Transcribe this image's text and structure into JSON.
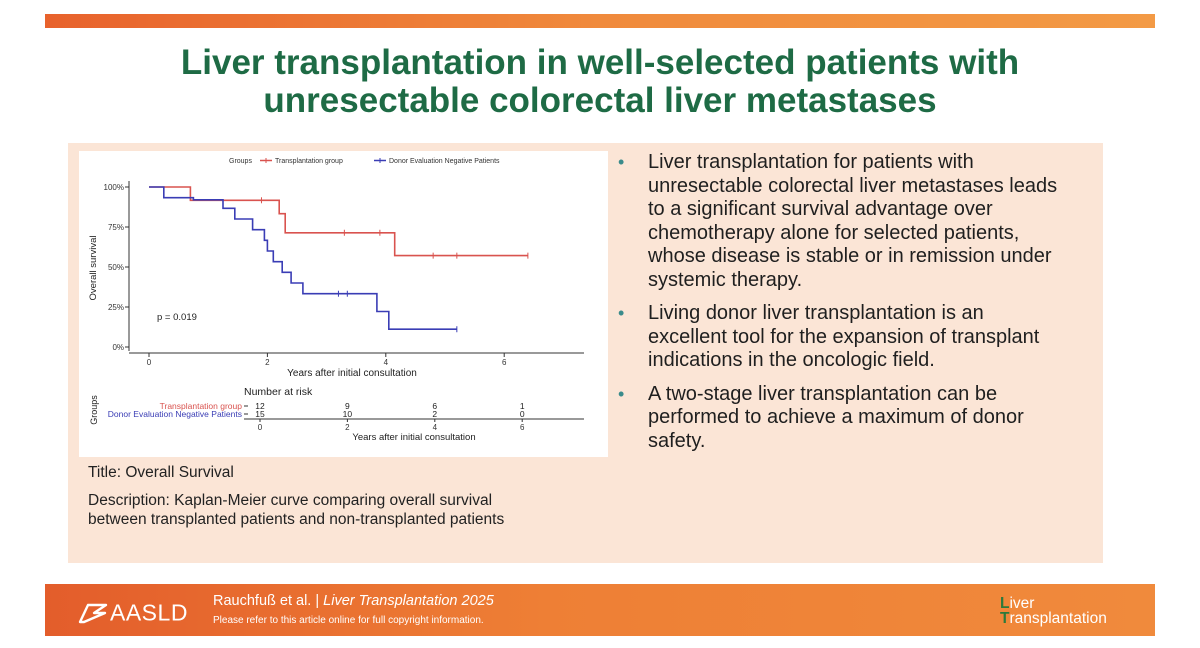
{
  "title_line1": "Liver transplantation in well-selected patients with",
  "title_line2": "unresectable colorectal liver metastases",
  "caption": {
    "title": "Title: Overall Survival",
    "description_line1": "Description: Kaplan-Meier curve comparing overall survival",
    "description_line2": "between transplanted patients and non-transplanted patients"
  },
  "bullets": [
    {
      "lines": [
        "Liver transplantation for patients with",
        "unresectable colorectal liver metastases leads",
        "to a significant survival advantage over",
        "chemotherapy alone for selected patients,",
        "whose disease is stable or in remission under",
        "systemic therapy."
      ]
    },
    {
      "lines": [
        "Living donor liver transplantation is an",
        "excellent tool for the expansion of transplant",
        "indications in the oncologic field."
      ]
    },
    {
      "lines": [
        "A two-stage liver transplantation can be",
        "performed to achieve a maximum of donor",
        "safety."
      ]
    }
  ],
  "footer": {
    "logo_text": "AASLD",
    "citation_authors": "Rauchfuß et al. |",
    "citation_journal": "Liver Transplantation 2025",
    "copyright": "Please refer to this article online for full copyright information.",
    "journal_logo_line1": "Liver",
    "journal_logo_line2": "Transplantation"
  },
  "colors": {
    "title": "#1e6b45",
    "panel": "#fbe5d6",
    "series_transplant": "#d9534f",
    "series_donor": "#3a3db5",
    "bar_orange": "#ee7f35"
  },
  "chart_data": {
    "type": "line",
    "legend_title": "Groups",
    "xlabel": "Years after initial consultation",
    "ylabel": "Overall survival",
    "xlim": [
      0,
      7
    ],
    "ylim": [
      0,
      1
    ],
    "x_ticks": [
      "0",
      "2",
      "4",
      "6"
    ],
    "y_ticks": [
      "0%",
      "25%",
      "50%",
      "75%",
      "100%"
    ],
    "annotation": "p = 0.019",
    "series": [
      {
        "name": "Transplantation group",
        "color": "#d9534f",
        "steps": [
          [
            0,
            1.0
          ],
          [
            0.7,
            1.0
          ],
          [
            0.7,
            0.917
          ],
          [
            2.2,
            0.917
          ],
          [
            2.2,
            0.833
          ],
          [
            2.3,
            0.833
          ],
          [
            2.3,
            0.714
          ],
          [
            4.15,
            0.714
          ],
          [
            4.15,
            0.571
          ],
          [
            6.4,
            0.571
          ]
        ],
        "censors": [
          [
            1.9,
            0.917
          ],
          [
            3.3,
            0.714
          ],
          [
            3.9,
            0.714
          ],
          [
            4.8,
            0.571
          ],
          [
            5.2,
            0.571
          ],
          [
            6.4,
            0.571
          ]
        ]
      },
      {
        "name": "Donor Evaluation Negative Patients",
        "color": "#3a3db5",
        "steps": [
          [
            0,
            1.0
          ],
          [
            0.25,
            1.0
          ],
          [
            0.25,
            0.933
          ],
          [
            0.75,
            0.933
          ],
          [
            0.75,
            0.92
          ],
          [
            1.25,
            0.92
          ],
          [
            1.25,
            0.867
          ],
          [
            1.45,
            0.867
          ],
          [
            1.45,
            0.8
          ],
          [
            1.75,
            0.8
          ],
          [
            1.75,
            0.733
          ],
          [
            1.95,
            0.733
          ],
          [
            1.95,
            0.667
          ],
          [
            2.0,
            0.667
          ],
          [
            2.0,
            0.6
          ],
          [
            2.1,
            0.6
          ],
          [
            2.1,
            0.533
          ],
          [
            2.25,
            0.533
          ],
          [
            2.25,
            0.467
          ],
          [
            2.4,
            0.467
          ],
          [
            2.4,
            0.4
          ],
          [
            2.6,
            0.4
          ],
          [
            2.6,
            0.333
          ],
          [
            3.85,
            0.333
          ],
          [
            3.85,
            0.222
          ],
          [
            4.05,
            0.222
          ],
          [
            4.05,
            0.111
          ],
          [
            5.2,
            0.111
          ]
        ],
        "censors": [
          [
            3.2,
            0.333
          ],
          [
            3.35,
            0.333
          ],
          [
            5.2,
            0.111
          ]
        ]
      }
    ],
    "risk_table": {
      "title": "Number at risk",
      "axis_label": "Groups",
      "xlabel": "Years after initial consultation",
      "x_ticks": [
        "0",
        "2",
        "4",
        "6"
      ],
      "rows": [
        {
          "name": "Transplantation group",
          "values": [
            "12",
            "9",
            "6",
            "1"
          ]
        },
        {
          "name": "Donor Evaluation Negative Patients",
          "values": [
            "15",
            "10",
            "2",
            "0"
          ]
        }
      ]
    }
  }
}
